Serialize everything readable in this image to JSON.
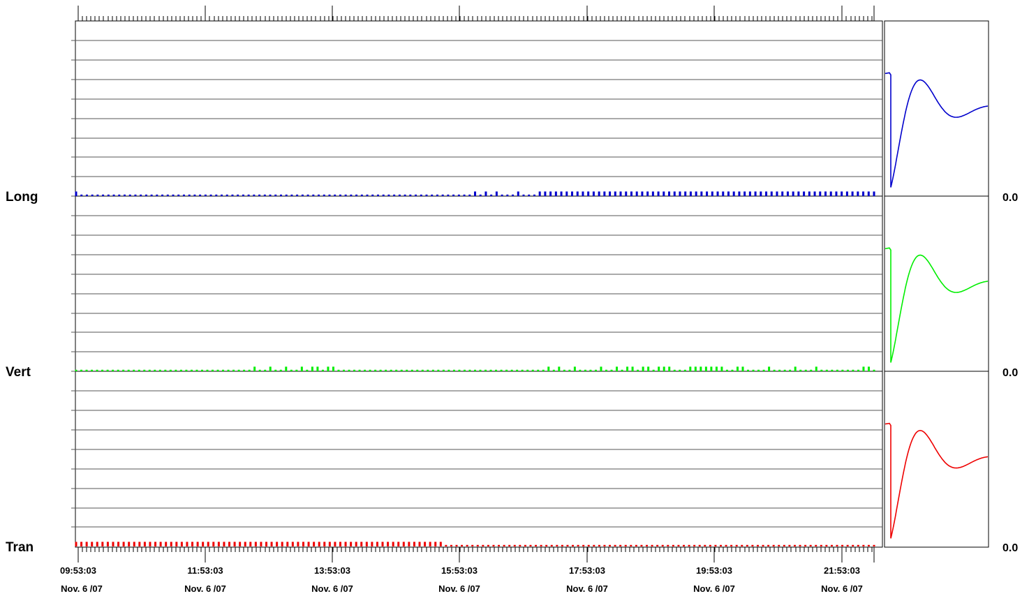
{
  "chart_data": {
    "type": "bar",
    "x_tick_labels": [
      {
        "time": "09:53:03",
        "date": "Nov. 6 /07"
      },
      {
        "time": "11:53:03",
        "date": "Nov. 6 /07"
      },
      {
        "time": "13:53:03",
        "date": "Nov. 6 /07"
      },
      {
        "time": "15:53:03",
        "date": "Nov. 6 /07"
      },
      {
        "time": "17:53:03",
        "date": "Nov. 6 /07"
      },
      {
        "time": "19:53:03",
        "date": "Nov. 6 /07"
      },
      {
        "time": "21:53:03",
        "date": "Nov. 6 /07"
      }
    ],
    "series": [
      {
        "name": "Long",
        "value_label": "0.0",
        "color": "#0000cc",
        "values": [
          3,
          1,
          1,
          1,
          1,
          1,
          1,
          1,
          1,
          1,
          1,
          1,
          1,
          1,
          1,
          1,
          1,
          1,
          1,
          1,
          1,
          1,
          1,
          1,
          1,
          1,
          1,
          1,
          1,
          1,
          1,
          1,
          1,
          1,
          1,
          1,
          1,
          1,
          1,
          1,
          1,
          1,
          1,
          1,
          1,
          1,
          1,
          1,
          1,
          1,
          1,
          1,
          1,
          1,
          1,
          1,
          1,
          1,
          1,
          1,
          1,
          1,
          1,
          1,
          1,
          1,
          1,
          1,
          1,
          1,
          1,
          1,
          1,
          1,
          3,
          1,
          3,
          1,
          3,
          1,
          1,
          1,
          3,
          1,
          1,
          1,
          3,
          3,
          3,
          3,
          3,
          3,
          3,
          3,
          3,
          3,
          3,
          3,
          3,
          3,
          3,
          3,
          3,
          3,
          3,
          3,
          3,
          3,
          3,
          3,
          3,
          3,
          3,
          3,
          3,
          3,
          3,
          3,
          3,
          3,
          3,
          3,
          3,
          3,
          3,
          3,
          3,
          3,
          3,
          3,
          3,
          3,
          3,
          3,
          3,
          3,
          3,
          3,
          3,
          3,
          3,
          3,
          3,
          3,
          3,
          3,
          3,
          3,
          3
        ]
      },
      {
        "name": "Vert",
        "value_label": "0.0",
        "color": "#00ee00",
        "values": [
          1,
          1,
          1,
          1,
          1,
          1,
          1,
          1,
          1,
          1,
          1,
          1,
          1,
          1,
          1,
          1,
          1,
          1,
          1,
          1,
          1,
          1,
          1,
          1,
          1,
          1,
          1,
          1,
          1,
          1,
          1,
          1,
          1,
          1,
          3,
          1,
          1,
          3,
          1,
          1,
          3,
          1,
          1,
          3,
          1,
          3,
          3,
          1,
          3,
          3,
          1,
          1,
          1,
          1,
          1,
          1,
          1,
          1,
          1,
          1,
          1,
          1,
          1,
          1,
          1,
          1,
          1,
          1,
          1,
          1,
          1,
          1,
          1,
          1,
          1,
          1,
          1,
          1,
          1,
          1,
          1,
          1,
          1,
          1,
          1,
          1,
          1,
          1,
          1,
          1,
          3,
          1,
          3,
          1,
          1,
          3,
          1,
          1,
          1,
          1,
          3,
          1,
          1,
          3,
          1,
          3,
          3,
          1,
          3,
          3,
          1,
          3,
          3,
          3,
          1,
          1,
          1,
          3,
          3,
          3,
          3,
          3,
          3,
          3,
          1,
          1,
          3,
          3,
          1,
          1,
          1,
          1,
          3,
          1,
          1,
          1,
          1,
          3,
          1,
          1,
          1,
          3,
          1,
          1,
          1,
          1,
          1,
          1,
          1,
          1,
          3,
          3,
          1
        ]
      },
      {
        "name": "Tran",
        "value_label": "0.0",
        "color": "#ee0000",
        "values": [
          3,
          3,
          3,
          3,
          3,
          3,
          3,
          3,
          3,
          3,
          3,
          3,
          3,
          3,
          3,
          3,
          3,
          3,
          3,
          3,
          3,
          3,
          3,
          3,
          3,
          3,
          3,
          3,
          3,
          3,
          3,
          3,
          3,
          3,
          3,
          3,
          3,
          3,
          3,
          3,
          3,
          3,
          3,
          3,
          3,
          3,
          3,
          3,
          3,
          3,
          3,
          3,
          3,
          3,
          3,
          3,
          3,
          3,
          3,
          3,
          3,
          3,
          3,
          3,
          3,
          3,
          3,
          3,
          3,
          3,
          1,
          1,
          1,
          1,
          1,
          1,
          1,
          1,
          1,
          1,
          1,
          1,
          1,
          1,
          1,
          1,
          1,
          1,
          1,
          1,
          1,
          1,
          1,
          1,
          1,
          1,
          1,
          1,
          1,
          1,
          1,
          1,
          1,
          1,
          1,
          1,
          1,
          1,
          1,
          1,
          1,
          1,
          1,
          1,
          1,
          1,
          1,
          1,
          1,
          1,
          1,
          1,
          1,
          1,
          1,
          1,
          1,
          1,
          1,
          1,
          1,
          1,
          1,
          1,
          1,
          1,
          1,
          1,
          1,
          1,
          1,
          1,
          1,
          1,
          1,
          1,
          1,
          1,
          1,
          1,
          1,
          1
        ]
      }
    ],
    "waveform_panels": [
      {
        "series": "Long",
        "color": "#0000cc"
      },
      {
        "series": "Vert",
        "color": "#00ee00"
      },
      {
        "series": "Tran",
        "color": "#ee0000"
      }
    ],
    "grid": true
  }
}
